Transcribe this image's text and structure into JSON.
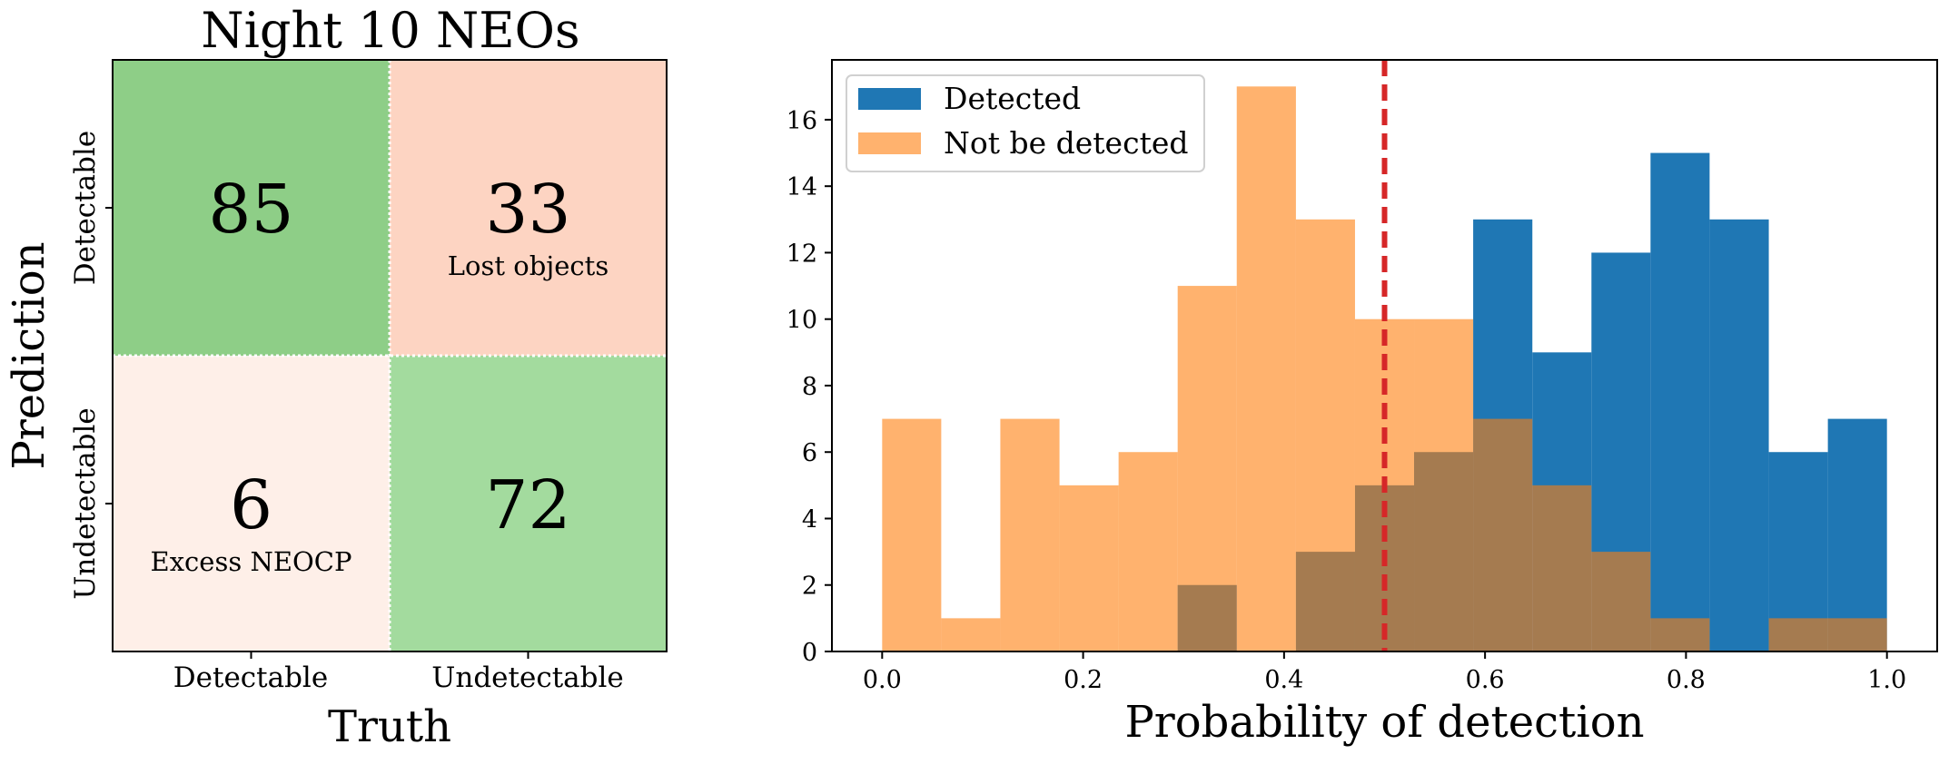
{
  "chart_data": [
    {
      "type": "heatmap",
      "title": "Night 10 NEOs",
      "xlabel": "Truth",
      "ylabel": "Prediction",
      "x_tick_labels": [
        "Detectable",
        "Undetectable"
      ],
      "y_tick_labels": [
        "Detectable",
        "Undetectable"
      ],
      "cells": [
        {
          "row": 0,
          "col": 0,
          "value": 85,
          "annotation": "",
          "color": "#8ece87"
        },
        {
          "row": 0,
          "col": 1,
          "value": 33,
          "annotation": "Lost objects",
          "color": "#fdd4c2"
        },
        {
          "row": 1,
          "col": 0,
          "value": 6,
          "annotation": "Excess NEOCP",
          "color": "#feefe8"
        },
        {
          "row": 1,
          "col": 1,
          "value": 72,
          "annotation": "",
          "color": "#a3db9e"
        }
      ]
    },
    {
      "type": "bar",
      "subtype": "histogram",
      "xlabel": "Probability of detection",
      "ylabel": "",
      "xlim": [
        -0.05,
        1.05
      ],
      "ylim": [
        0,
        17.8
      ],
      "x_ticks": [
        0.0,
        0.2,
        0.4,
        0.6,
        0.8,
        1.0
      ],
      "x_tick_labels": [
        "0.0",
        "0.2",
        "0.4",
        "0.6",
        "0.8",
        "1.0"
      ],
      "y_ticks": [
        0,
        2,
        4,
        6,
        8,
        10,
        12,
        14,
        16
      ],
      "y_tick_labels": [
        "0",
        "2",
        "4",
        "6",
        "8",
        "10",
        "12",
        "14",
        "16"
      ],
      "bin_edges": [
        0.0,
        0.0588,
        0.1176,
        0.1765,
        0.2353,
        0.2941,
        0.3529,
        0.4118,
        0.4706,
        0.5294,
        0.5882,
        0.6471,
        0.7059,
        0.7647,
        0.8235,
        0.8824,
        0.9412,
        1.0
      ],
      "series": [
        {
          "name": "Detected",
          "color": "#1f77b4",
          "opacity": 1.0,
          "values": [
            0,
            0,
            0,
            0,
            0,
            2,
            0,
            3,
            5,
            6,
            13,
            9,
            12,
            15,
            13,
            6,
            7
          ]
        },
        {
          "name": "Not be detected",
          "color": "#ff7f0e",
          "opacity": 0.6,
          "values": [
            7,
            1,
            7,
            5,
            6,
            11,
            17,
            13,
            10,
            10,
            7,
            5,
            3,
            1,
            0,
            1,
            1
          ]
        }
      ],
      "threshold": {
        "x": 0.5,
        "color": "#d62728",
        "style": "dashed"
      },
      "legend": {
        "location": "upper-left"
      },
      "grid": false
    }
  ]
}
